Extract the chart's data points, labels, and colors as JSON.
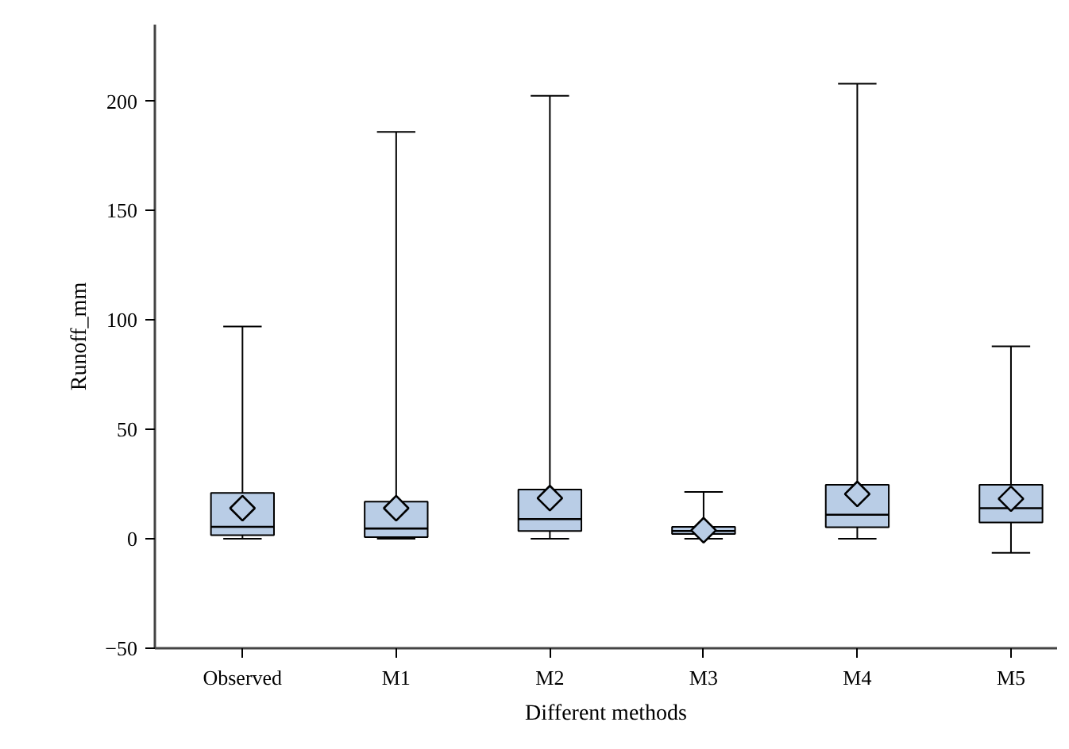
{
  "chart_data": {
    "type": "box",
    "xlabel": "Different methods",
    "ylabel": "Runoff_mm",
    "categories": [
      "Observed",
      "M1",
      "M2",
      "M3",
      "M4",
      "M5"
    ],
    "color": "#b9cde6",
    "marker": "diamond",
    "grid": false,
    "ylim": [
      -50,
      235
    ],
    "yticks": [
      -50,
      0,
      50,
      100,
      150,
      200
    ],
    "boxes": [
      {
        "low": 0,
        "q1": 1.7,
        "median": 5.5,
        "q3": 21,
        "high": 97,
        "mean": 14
      },
      {
        "low": 0,
        "q1": 0.8,
        "median": 4.7,
        "q3": 17,
        "high": 186,
        "mean": 14
      },
      {
        "low": 0,
        "q1": 3.6,
        "median": 9,
        "q3": 22.5,
        "high": 202.5,
        "mean": 18.6
      },
      {
        "low": 0,
        "q1": 2.2,
        "median": 3.6,
        "q3": 5.5,
        "high": 21.4,
        "mean": 3.9
      },
      {
        "low": 0,
        "q1": 5.3,
        "median": 11,
        "q3": 24.7,
        "high": 208,
        "mean": 20.5
      },
      {
        "low": -6.4,
        "q1": 7.5,
        "median": 14,
        "q3": 24.7,
        "high": 88,
        "mean": 18.3
      }
    ]
  }
}
